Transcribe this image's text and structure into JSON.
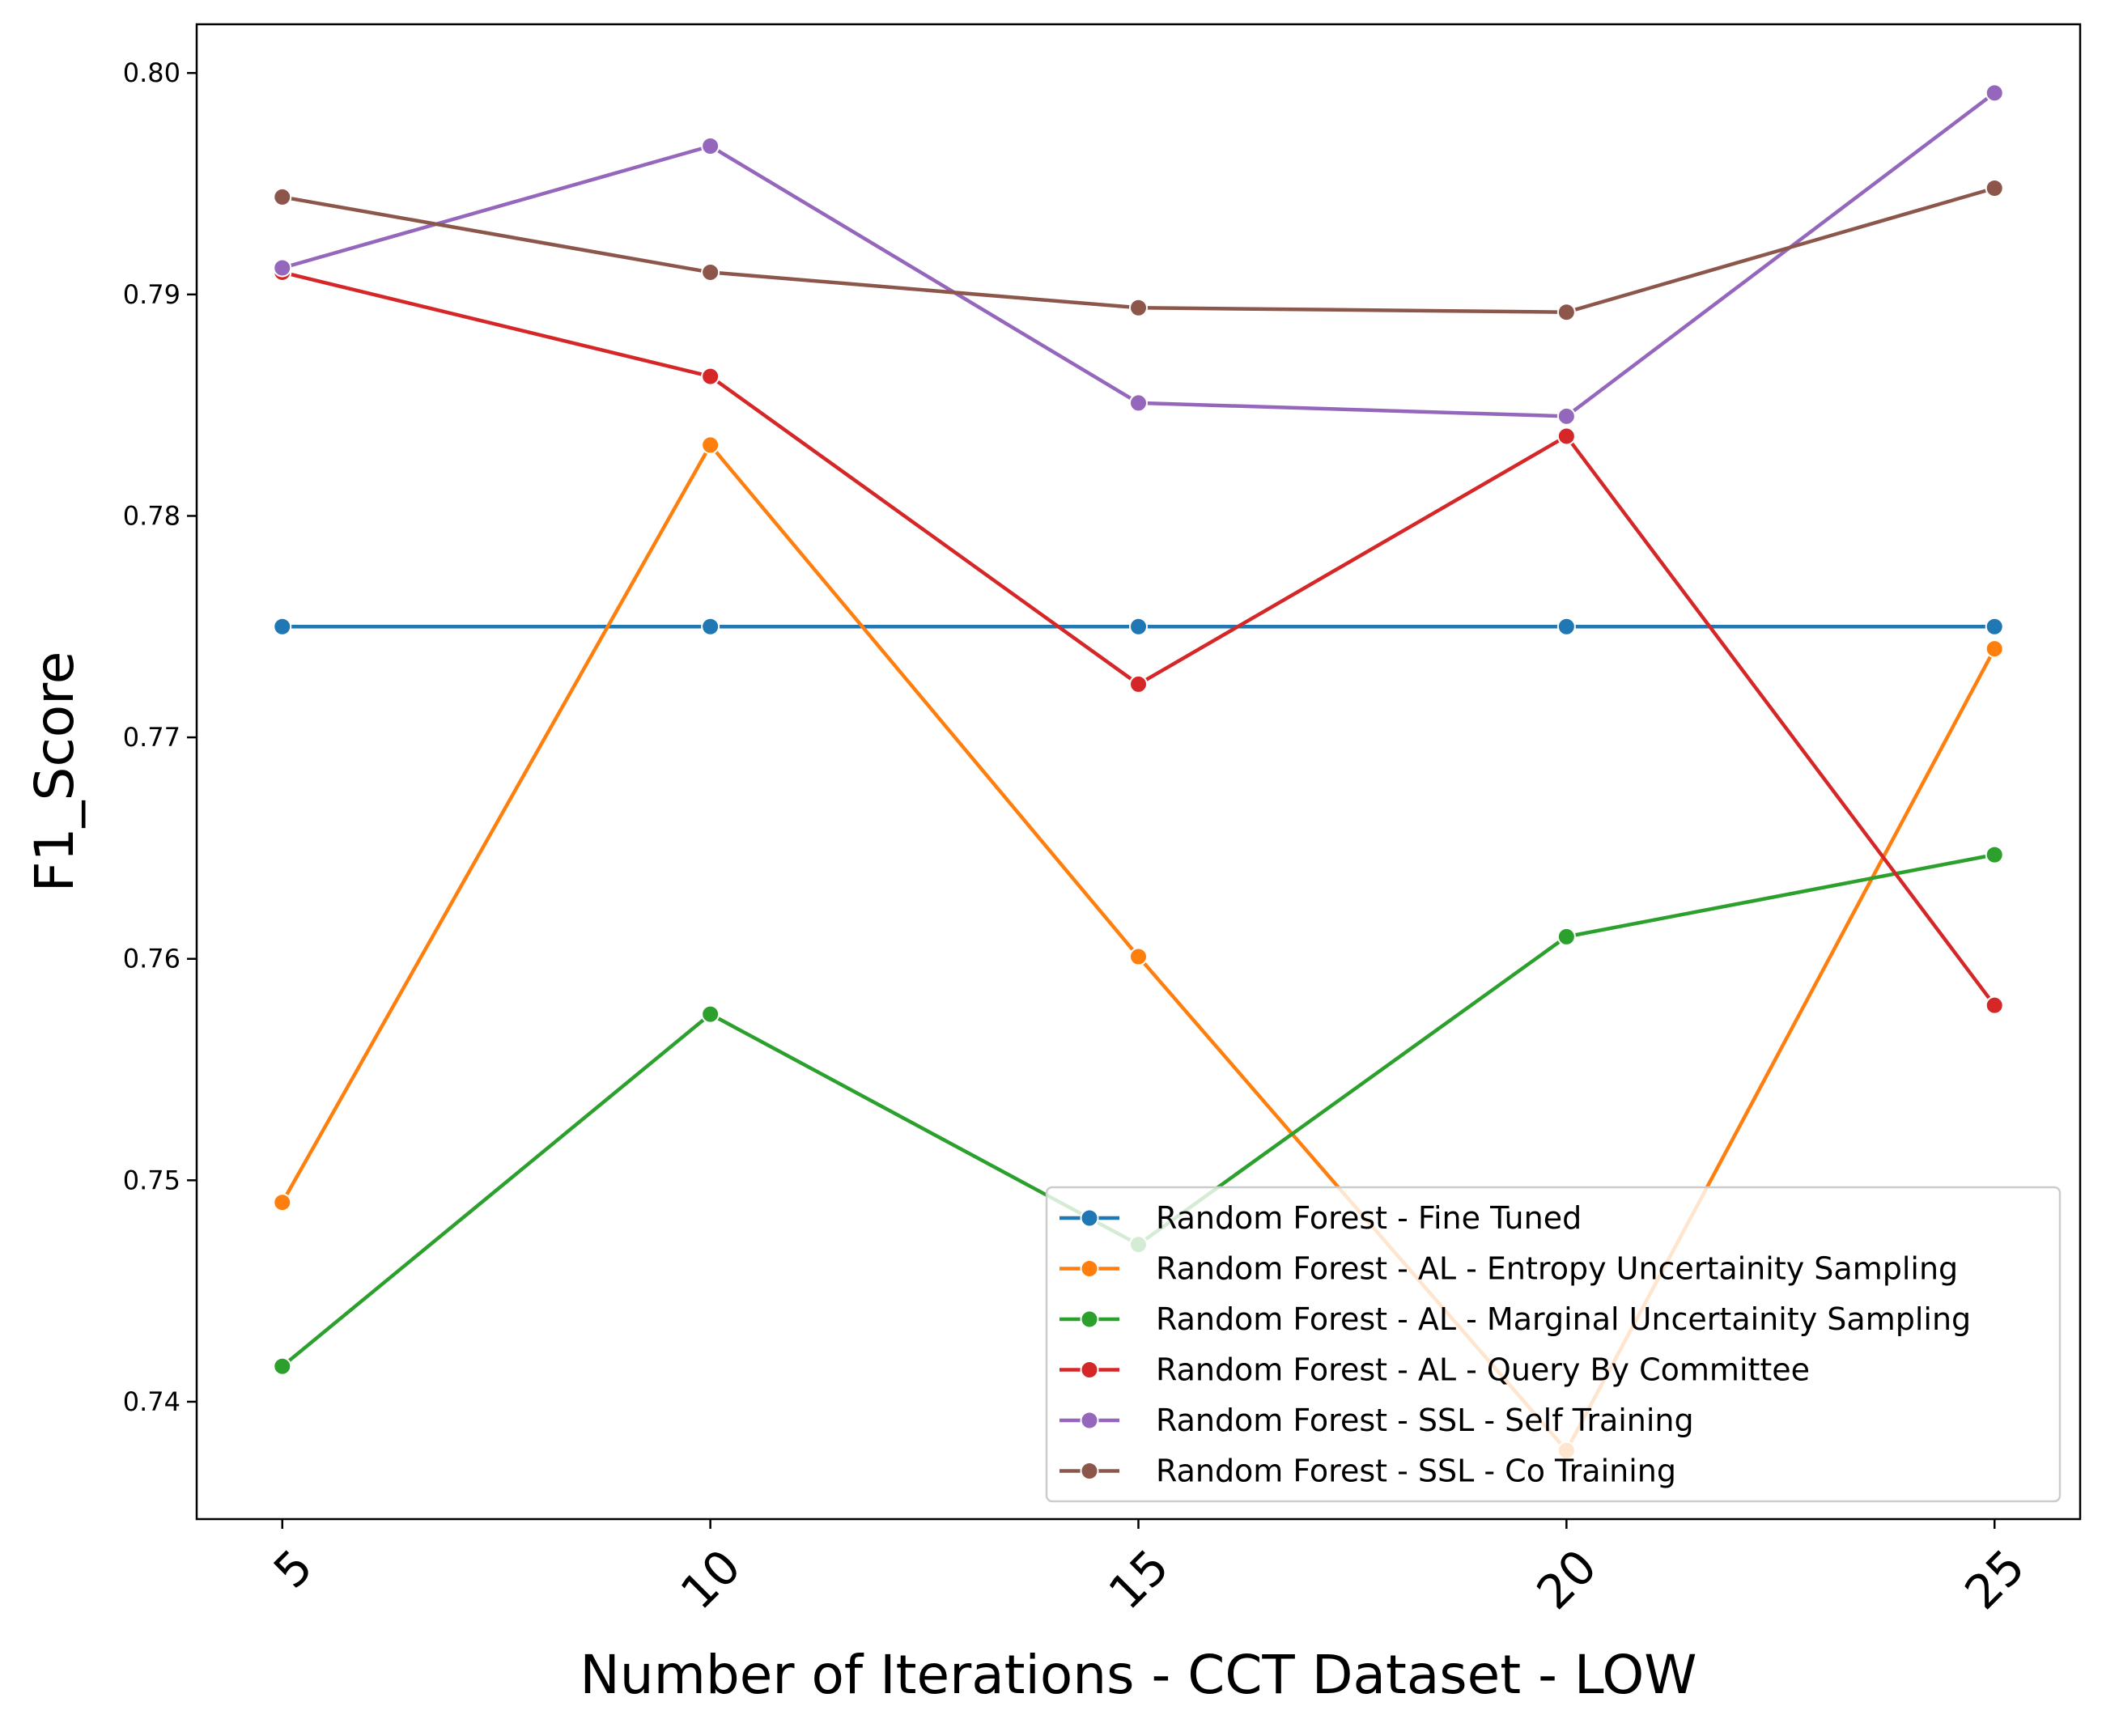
{
  "chart_data": {
    "type": "line",
    "xlabel": "Number of Iterations - CCT Dataset - LOW",
    "ylabel": "F1_Score",
    "x": [
      5,
      10,
      15,
      20,
      25
    ],
    "x_ticks": [
      "5",
      "10",
      "15",
      "20",
      "25"
    ],
    "xlim": [
      4,
      26
    ],
    "ylim": [
      0.7347,
      0.8022
    ],
    "y_ticks": [
      "0.74",
      "0.75",
      "0.76",
      "0.77",
      "0.78",
      "0.79",
      "0.80"
    ],
    "legend_position": "lower-right",
    "grid": false,
    "series": [
      {
        "name": "Random Forest - Fine Tuned",
        "color": "#1f77b4",
        "values": [
          0.775,
          0.775,
          0.775,
          0.775,
          0.775
        ]
      },
      {
        "name": "Random Forest - AL - Entropy Uncertainity Sampling",
        "color": "#ff7f0e",
        "values": [
          0.749,
          0.7832,
          0.7601,
          0.7378,
          0.774
        ]
      },
      {
        "name": "Random Forest - AL - Marginal Uncertainity Sampling",
        "color": "#2ca02c",
        "values": [
          0.7416,
          0.7575,
          0.7471,
          0.761,
          0.7647
        ]
      },
      {
        "name": "Random Forest - AL - Query By Committee",
        "color": "#d62728",
        "values": [
          0.791,
          0.7863,
          0.7724,
          0.7836,
          0.7579
        ]
      },
      {
        "name": "Random Forest - SSL - Self Training",
        "color": "#9467bd",
        "values": [
          0.7912,
          0.7967,
          0.7851,
          0.7845,
          0.7991
        ]
      },
      {
        "name": "Random Forest - SSL - Co Training",
        "color": "#8c564b",
        "values": [
          0.7944,
          0.791,
          0.7894,
          0.7892,
          0.7948
        ]
      }
    ]
  }
}
